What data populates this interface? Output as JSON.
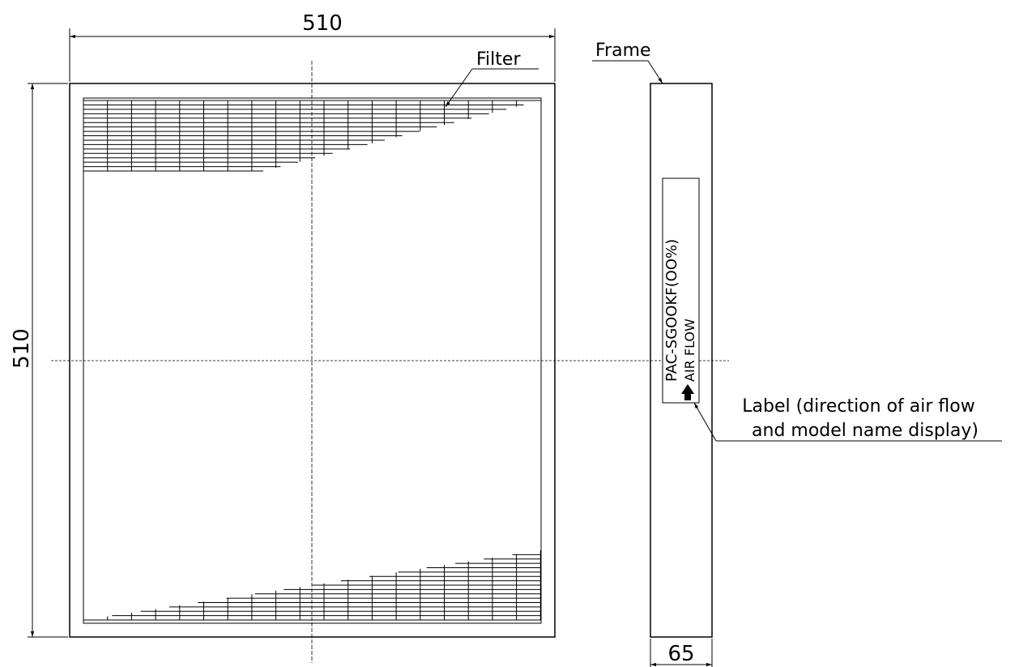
{
  "dimensions": {
    "front_width": "510",
    "front_height": "510",
    "side_depth": "65"
  },
  "labels": {
    "filter": "Filter",
    "frame": "Frame",
    "label_line1": "Label (direction of air flow",
    "label_line2": "and model name display)"
  },
  "side_label": {
    "model": "PAC-SGOOKF(OO%)",
    "air_flow": "AIR FLOW"
  },
  "colors": {
    "line": "#000000",
    "background": "#ffffff"
  }
}
